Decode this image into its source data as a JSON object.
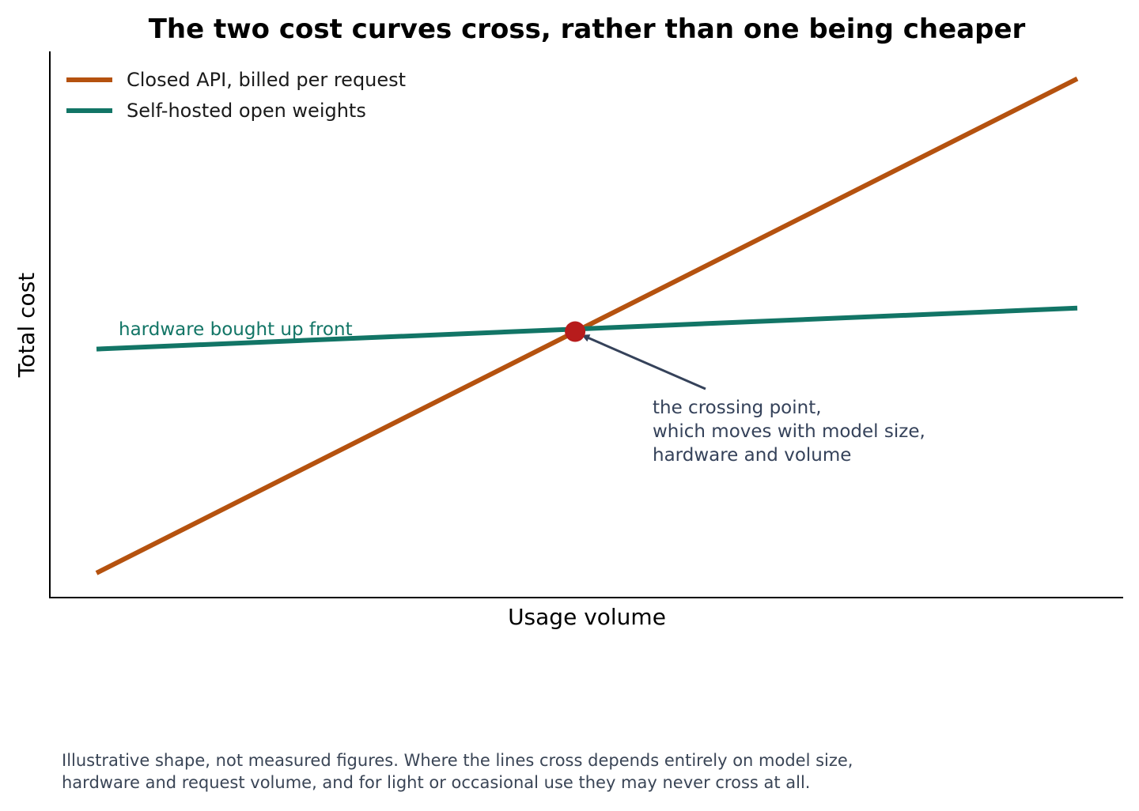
{
  "chart_data": {
    "type": "line",
    "title": "The two cost curves cross, rather than one being cheaper",
    "xlabel": "Usage volume",
    "ylabel": "Total cost",
    "xlim": [
      0,
      1
    ],
    "ylim": [
      0,
      1
    ],
    "grid": false,
    "legend_placement": "top-left",
    "x": [
      0,
      1
    ],
    "series": [
      {
        "name": "Closed API, billed per request",
        "values": [
          0.045,
          0.95
        ],
        "color": "#b5520f"
      },
      {
        "name": "Self-hosted open weights",
        "values": [
          0.455,
          0.53
        ],
        "color": "#127566"
      }
    ],
    "crossing_point": {
      "x": 0.488,
      "y": 0.487,
      "color": "#b71c1c"
    },
    "annotations": {
      "green_line_label": "hardware bought up front",
      "green_line_label_color": "#127566",
      "crossing_lines": [
        "the crossing point,",
        "which moves with model size,",
        "hardware and volume"
      ],
      "crossing_color": "#35425a"
    }
  },
  "footnote": {
    "lines": [
      "Illustrative shape, not measured figures. Where the lines cross depends entirely on model size,",
      "hardware and request volume, and for light or occasional use they may never cross at all."
    ]
  }
}
